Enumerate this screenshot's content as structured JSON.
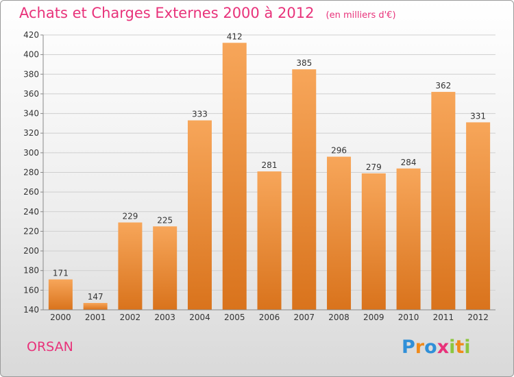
{
  "title": "Achats et Charges Externes 2000 à 2012",
  "unit": "(en milliers d'€)",
  "town": "ORSAN",
  "logo": {
    "text": "Proxiti",
    "letters": [
      {
        "ch": "P",
        "color": "#2f8fd8"
      },
      {
        "ch": "r",
        "color": "#f08a1a"
      },
      {
        "ch": "o",
        "color": "#2f8fd8"
      },
      {
        "ch": "x",
        "color": "#e8327a"
      },
      {
        "ch": "i",
        "color": "#8cc63f"
      },
      {
        "ch": "t",
        "color": "#f08a1a"
      },
      {
        "ch": "i",
        "color": "#8cc63f"
      }
    ]
  },
  "chart_data": {
    "type": "bar",
    "title": "Achats et Charges Externes 2000 à 2012",
    "categories": [
      "2000",
      "2001",
      "2002",
      "2003",
      "2004",
      "2005",
      "2006",
      "2007",
      "2008",
      "2009",
      "2010",
      "2011",
      "2012"
    ],
    "values": [
      171,
      147,
      229,
      225,
      333,
      412,
      281,
      385,
      296,
      279,
      284,
      362,
      331
    ],
    "ylim": [
      140,
      420
    ],
    "yticks": [
      140,
      160,
      180,
      200,
      220,
      240,
      260,
      280,
      300,
      320,
      340,
      360,
      380,
      400,
      420
    ],
    "grid": true,
    "bar_color": "#f0852a"
  }
}
